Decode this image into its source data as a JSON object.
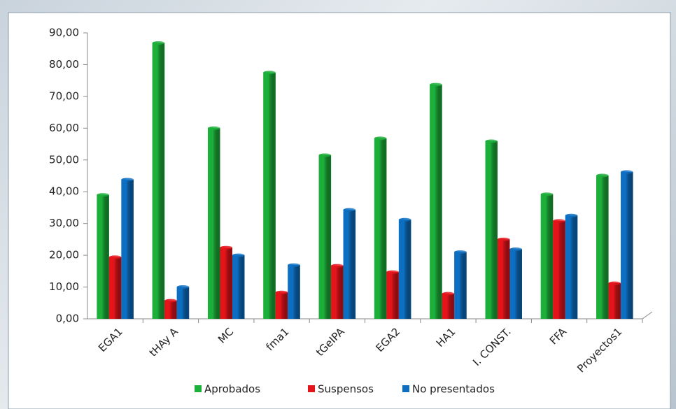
{
  "chart_data": {
    "type": "bar",
    "categories": [
      "EGA1",
      "tHAy A",
      "MC",
      "fma1",
      "tGeIPA",
      "EGA2",
      "HA1",
      "I. CONST.",
      "FFA",
      "Proyectos1"
    ],
    "series": [
      {
        "name": "Aprobados",
        "color": "#1caf3a",
        "values": [
          39,
          86.8,
          60,
          77.5,
          51.5,
          56.8,
          73.7,
          55.9,
          39.2,
          45.1
        ]
      },
      {
        "name": "Suspensos",
        "color": "#e5141b",
        "values": [
          19.4,
          5.7,
          22.4,
          8.3,
          16.7,
          14.7,
          7.9,
          25,
          30.8,
          11.2
        ]
      },
      {
        "name": "No presentados",
        "color": "#0d6fc2",
        "values": [
          43.8,
          10,
          20,
          16.9,
          34.3,
          31.2,
          21,
          21.9,
          32.5,
          46.2
        ]
      }
    ],
    "ylim": [
      0,
      90
    ],
    "yticks": [
      {
        "value": 0,
        "label": "0,00"
      },
      {
        "value": 10,
        "label": "10,00"
      },
      {
        "value": 20,
        "label": "20,00"
      },
      {
        "value": 30,
        "label": "30,00"
      },
      {
        "value": 40,
        "label": "40,00"
      },
      {
        "value": 50,
        "label": "50,00"
      },
      {
        "value": 60,
        "label": "60,00"
      },
      {
        "value": 70,
        "label": "70,00"
      },
      {
        "value": 80,
        "label": "80,00"
      },
      {
        "value": 90,
        "label": "90,00"
      }
    ],
    "legend": "bottom"
  }
}
